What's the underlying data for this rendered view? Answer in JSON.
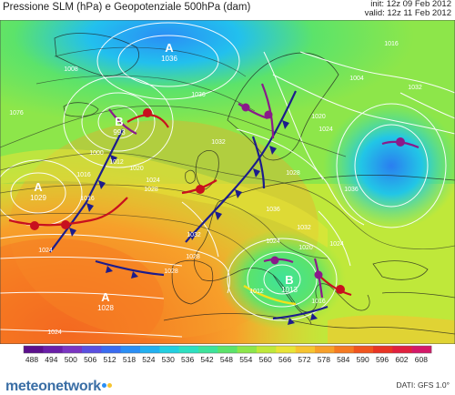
{
  "title": "Pressione SLM (hPa) e Geopotenziale 500hPa (dam)",
  "init_line": "init: 12z 09 Feb 2012",
  "valid_line": "valid: 12z 11 Feb 2012",
  "pressure_centers": [
    {
      "letter": "A",
      "value": "1036"
    },
    {
      "letter": "B",
      "value": "993"
    },
    {
      "letter": "A",
      "value": "1029"
    },
    {
      "letter": "A",
      "value": "1028"
    },
    {
      "letter": "B",
      "value": "1013"
    }
  ],
  "isobar_labels": [
    "1076",
    "1008",
    "1000",
    "1012",
    "1016",
    "1020",
    "1024",
    "1028",
    "1032",
    "1036",
    "1004",
    "1016",
    "1020",
    "1024",
    "1028",
    "1032",
    "1024",
    "1028",
    "1032",
    "1036",
    "1020",
    "1016",
    "1012",
    "1024",
    "1036",
    "1032",
    "1024",
    "1028",
    "1016",
    "1024"
  ],
  "colorbar": {
    "ticks": [
      "488",
      "494",
      "500",
      "506",
      "512",
      "518",
      "524",
      "530",
      "536",
      "542",
      "548",
      "554",
      "560",
      "566",
      "572",
      "578",
      "584",
      "590",
      "596",
      "602",
      "608"
    ],
    "colors": [
      "#5b0f8c",
      "#6a1fa8",
      "#7a35c2",
      "#5a4fe0",
      "#3a6bf0",
      "#2a8ef5",
      "#22b0f0",
      "#22cfe0",
      "#2de0c0",
      "#3ee39a",
      "#5ce36a",
      "#8de64a",
      "#bfe83a",
      "#e8e436",
      "#f6c430",
      "#f7a02a",
      "#f57a22",
      "#f0541e",
      "#e83424",
      "#e0203e",
      "#d41868"
    ]
  },
  "brand": "meteonetwork",
  "dati": "DATI:  GFS  1.0°"
}
